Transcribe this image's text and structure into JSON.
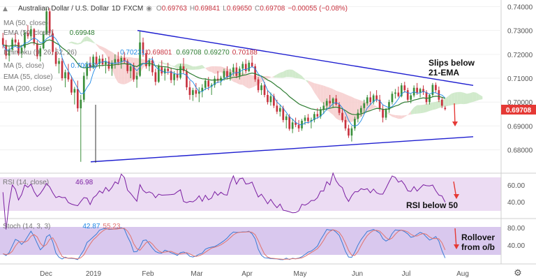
{
  "header": {
    "symbol": "Australian Dollar / U.S. Dollar",
    "interval": "1D",
    "source": "FXCM",
    "o_label": "O",
    "o": "0.69763",
    "h_label": "H",
    "h": "0.69841",
    "l_label": "L",
    "l": "0.69650",
    "c_label": "C",
    "c": "0.69708",
    "change": "−0.00055 (−0.08%)"
  },
  "indicators": {
    "ma50": {
      "label": "MA (50, close)",
      "value": "0.69948"
    },
    "ema50": {
      "label": "EMA (50, close)",
      "value": ""
    },
    "ichimoku": {
      "label": "Ichimoku (9, 26, 52, 26)",
      "v1": "0.70231",
      "v2": "0.69801",
      "v3": "0.69708",
      "v4": "0.69270",
      "v5": "0.70188"
    },
    "ma5": {
      "label": "MA (5, close)",
      "value": "0.70052"
    },
    "ema55": {
      "label": "EMA (55, close)"
    },
    "ma200": {
      "label": "MA (200, close)"
    }
  },
  "rsi_panel": {
    "label": "RSI (14, close)",
    "value": "46.98",
    "ticks": [
      "60.00",
      "40.00"
    ]
  },
  "stoch_panel": {
    "label": "Stoch (14, 3, 3)",
    "k": "42.87",
    "d": "55.23",
    "ticks": [
      "80.00",
      "40.00"
    ]
  },
  "annotations": {
    "main_1": "Slips below",
    "main_2": "21-EMA",
    "rsi": "RSI below 50",
    "stoch_1": "Rollover",
    "stoch_2": "from o/b"
  },
  "price_badge": "0.69708",
  "x_axis_labels": [
    "Dec",
    "2019",
    "Feb",
    "Mar",
    "Apr",
    "May",
    "Jun",
    "Jul",
    "Aug"
  ],
  "colors": {
    "up": "#3b8f3b",
    "down": "#c8323f",
    "trendline": "#1f1fd0",
    "cloud_bull": "#c9e6c3",
    "cloud_bear": "#f6cccc",
    "rsi_bg": "#ecdcf3",
    "stoch_bg": "#d9c8ee",
    "k_line": "#3a7bd5",
    "d_line": "#e0736e",
    "ema": "#2e7d32",
    "arrow": "#e53935",
    "badge": "#e53935"
  },
  "chart_data": {
    "type": "candlestick",
    "y_ticks": [
      0.74,
      0.73,
      0.72,
      0.71,
      0.7,
      0.69,
      0.68
    ],
    "ylim": [
      0.672,
      0.741
    ],
    "candles": [
      [
        0.7268,
        0.729,
        0.7225,
        0.724
      ],
      [
        0.724,
        0.726,
        0.718,
        0.7195
      ],
      [
        0.7195,
        0.723,
        0.717,
        0.722
      ],
      [
        0.722,
        0.727,
        0.721,
        0.7262
      ],
      [
        0.7262,
        0.729,
        0.7235,
        0.725
      ],
      [
        0.725,
        0.7262,
        0.7195,
        0.7205
      ],
      [
        0.7205,
        0.724,
        0.7185,
        0.7228
      ],
      [
        0.7228,
        0.73,
        0.7222,
        0.729
      ],
      [
        0.729,
        0.7322,
        0.7265,
        0.7276
      ],
      [
        0.7276,
        0.732,
        0.726,
        0.7305
      ],
      [
        0.7305,
        0.731,
        0.7238,
        0.7246
      ],
      [
        0.7246,
        0.7258,
        0.718,
        0.7192
      ],
      [
        0.7192,
        0.7235,
        0.717,
        0.7225
      ],
      [
        0.7225,
        0.7298,
        0.722,
        0.7285
      ],
      [
        0.7285,
        0.7393,
        0.728,
        0.738
      ],
      [
        0.738,
        0.7394,
        0.7275,
        0.7288
      ],
      [
        0.7288,
        0.7305,
        0.7198,
        0.721
      ],
      [
        0.721,
        0.7228,
        0.715,
        0.716
      ],
      [
        0.716,
        0.7185,
        0.712,
        0.7172
      ],
      [
        0.7172,
        0.7186,
        0.709,
        0.71
      ],
      [
        0.71,
        0.7136,
        0.7062,
        0.7125
      ],
      [
        0.7125,
        0.716,
        0.7085,
        0.7095
      ],
      [
        0.7095,
        0.711,
        0.703,
        0.704
      ],
      [
        0.704,
        0.7064,
        0.699,
        0.7055
      ],
      [
        0.7055,
        0.709,
        0.696,
        0.6974
      ],
      [
        0.6974,
        0.703,
        0.675,
        0.701
      ],
      [
        0.701,
        0.7125,
        0.7,
        0.711
      ],
      [
        0.711,
        0.717,
        0.7095,
        0.716
      ],
      [
        0.716,
        0.719,
        0.713,
        0.7145
      ],
      [
        0.7145,
        0.72,
        0.7138,
        0.719
      ],
      [
        0.719,
        0.721,
        0.7145,
        0.716
      ],
      [
        0.716,
        0.7195,
        0.714,
        0.7182
      ],
      [
        0.7182,
        0.72,
        0.715,
        0.7158
      ],
      [
        0.7158,
        0.7185,
        0.712,
        0.717
      ],
      [
        0.717,
        0.719,
        0.713,
        0.714
      ],
      [
        0.714,
        0.7175,
        0.711,
        0.7165
      ],
      [
        0.7165,
        0.72,
        0.714,
        0.718
      ],
      [
        0.718,
        0.721,
        0.7155,
        0.7168
      ],
      [
        0.7168,
        0.7195,
        0.714,
        0.7185
      ],
      [
        0.7185,
        0.721,
        0.716,
        0.7172
      ],
      [
        0.7172,
        0.718,
        0.712,
        0.713
      ],
      [
        0.713,
        0.716,
        0.71,
        0.715
      ],
      [
        0.715,
        0.7165,
        0.7085,
        0.7095
      ],
      [
        0.7095,
        0.7125,
        0.706,
        0.711
      ],
      [
        0.711,
        0.7296,
        0.7105,
        0.725
      ],
      [
        0.725,
        0.727,
        0.719,
        0.7205
      ],
      [
        0.7205,
        0.722,
        0.714,
        0.715
      ],
      [
        0.715,
        0.7185,
        0.713,
        0.7175
      ],
      [
        0.7175,
        0.719,
        0.711,
        0.7125
      ],
      [
        0.7125,
        0.714,
        0.707,
        0.7085
      ],
      [
        0.7085,
        0.716,
        0.708,
        0.715
      ],
      [
        0.715,
        0.7175,
        0.711,
        0.712
      ],
      [
        0.712,
        0.715,
        0.709,
        0.714
      ],
      [
        0.714,
        0.7165,
        0.7115,
        0.713
      ],
      [
        0.713,
        0.7145,
        0.708,
        0.7092
      ],
      [
        0.7092,
        0.713,
        0.707,
        0.7118
      ],
      [
        0.7118,
        0.714,
        0.709,
        0.7102
      ],
      [
        0.7102,
        0.716,
        0.7095,
        0.715
      ],
      [
        0.715,
        0.7185,
        0.712,
        0.713
      ],
      [
        0.713,
        0.714,
        0.705,
        0.7062
      ],
      [
        0.7062,
        0.709,
        0.701,
        0.703
      ],
      [
        0.703,
        0.706,
        0.7005,
        0.705
      ],
      [
        0.705,
        0.708,
        0.702,
        0.7035
      ],
      [
        0.7035,
        0.7062,
        0.7,
        0.7045
      ],
      [
        0.7045,
        0.7075,
        0.702,
        0.706
      ],
      [
        0.706,
        0.71,
        0.705,
        0.709
      ],
      [
        0.709,
        0.7105,
        0.705,
        0.7065
      ],
      [
        0.7065,
        0.708,
        0.703,
        0.7072
      ],
      [
        0.7072,
        0.711,
        0.706,
        0.7098
      ],
      [
        0.7098,
        0.713,
        0.708,
        0.709
      ],
      [
        0.709,
        0.711,
        0.707,
        0.7102
      ],
      [
        0.7102,
        0.714,
        0.709,
        0.713
      ],
      [
        0.713,
        0.715,
        0.7095,
        0.7105
      ],
      [
        0.7105,
        0.714,
        0.709,
        0.7125
      ],
      [
        0.7125,
        0.716,
        0.711,
        0.7145
      ],
      [
        0.7145,
        0.7165,
        0.71,
        0.711
      ],
      [
        0.711,
        0.715,
        0.7095,
        0.714
      ],
      [
        0.714,
        0.717,
        0.711,
        0.716
      ],
      [
        0.716,
        0.718,
        0.712,
        0.713
      ],
      [
        0.713,
        0.7175,
        0.7125,
        0.7165
      ],
      [
        0.7165,
        0.7195,
        0.7145,
        0.715
      ],
      [
        0.715,
        0.716,
        0.7085,
        0.7095
      ],
      [
        0.7095,
        0.7105,
        0.704,
        0.705
      ],
      [
        0.705,
        0.708,
        0.703,
        0.707
      ],
      [
        0.707,
        0.7085,
        0.702,
        0.703
      ],
      [
        0.703,
        0.705,
        0.699,
        0.7
      ],
      [
        0.7,
        0.704,
        0.6985,
        0.7025
      ],
      [
        0.7025,
        0.7035,
        0.6975,
        0.6985
      ],
      [
        0.6985,
        0.701,
        0.695,
        0.696
      ],
      [
        0.696,
        0.699,
        0.694,
        0.6975
      ],
      [
        0.6975,
        0.6985,
        0.6915,
        0.6925
      ],
      [
        0.6925,
        0.695,
        0.689,
        0.694
      ],
      [
        0.694,
        0.695,
        0.688,
        0.6888
      ],
      [
        0.6888,
        0.693,
        0.687,
        0.6915
      ],
      [
        0.6915,
        0.6935,
        0.6895,
        0.6905
      ],
      [
        0.6905,
        0.6925,
        0.6875,
        0.689
      ],
      [
        0.689,
        0.693,
        0.688,
        0.6922
      ],
      [
        0.6922,
        0.6945,
        0.6905,
        0.6935
      ],
      [
        0.6935,
        0.695,
        0.691,
        0.692
      ],
      [
        0.692,
        0.6935,
        0.689,
        0.6925
      ],
      [
        0.6925,
        0.696,
        0.6915,
        0.695
      ],
      [
        0.695,
        0.6975,
        0.693,
        0.694
      ],
      [
        0.694,
        0.698,
        0.693,
        0.697
      ],
      [
        0.697,
        0.7,
        0.695,
        0.6985
      ],
      [
        0.6985,
        0.7015,
        0.6965,
        0.7005
      ],
      [
        0.7005,
        0.703,
        0.698,
        0.6995
      ],
      [
        0.6995,
        0.702,
        0.6975,
        0.7015
      ],
      [
        0.7015,
        0.703,
        0.6985,
        0.699
      ],
      [
        0.699,
        0.7,
        0.6945,
        0.6955
      ],
      [
        0.6955,
        0.697,
        0.6915,
        0.6925
      ],
      [
        0.6925,
        0.694,
        0.688,
        0.689
      ],
      [
        0.689,
        0.6905,
        0.685,
        0.686
      ],
      [
        0.686,
        0.69,
        0.6835,
        0.689
      ],
      [
        0.689,
        0.694,
        0.688,
        0.693
      ],
      [
        0.693,
        0.697,
        0.6915,
        0.6955
      ],
      [
        0.6955,
        0.6985,
        0.694,
        0.6975
      ],
      [
        0.6975,
        0.701,
        0.6955,
        0.6995
      ],
      [
        0.6995,
        0.703,
        0.6985,
        0.702
      ],
      [
        0.702,
        0.7045,
        0.699,
        0.7
      ],
      [
        0.7,
        0.7035,
        0.699,
        0.7028
      ],
      [
        0.7028,
        0.705,
        0.7,
        0.701
      ],
      [
        0.701,
        0.703,
        0.696,
        0.697
      ],
      [
        0.697,
        0.699,
        0.6915,
        0.6935
      ],
      [
        0.6935,
        0.6975,
        0.6925,
        0.6968
      ],
      [
        0.6968,
        0.701,
        0.6955,
        0.7
      ],
      [
        0.7,
        0.7045,
        0.699,
        0.7035
      ],
      [
        0.7035,
        0.7055,
        0.7015,
        0.704
      ],
      [
        0.704,
        0.7065,
        0.702,
        0.7025
      ],
      [
        0.7025,
        0.708,
        0.702,
        0.707
      ],
      [
        0.707,
        0.7085,
        0.704,
        0.705
      ],
      [
        0.705,
        0.706,
        0.7,
        0.701
      ],
      [
        0.701,
        0.7035,
        0.6995,
        0.7028
      ],
      [
        0.7028,
        0.707,
        0.702,
        0.706
      ],
      [
        0.706,
        0.708,
        0.703,
        0.704
      ],
      [
        0.704,
        0.706,
        0.702,
        0.7055
      ],
      [
        0.7055,
        0.707,
        0.703,
        0.7042
      ],
      [
        0.7042,
        0.705,
        0.699,
        0.7
      ],
      [
        0.7,
        0.7035,
        0.699,
        0.703
      ],
      [
        0.703,
        0.708,
        0.702,
        0.7072
      ],
      [
        0.7072,
        0.7082,
        0.704,
        0.705
      ],
      [
        0.705,
        0.7065,
        0.7,
        0.701
      ],
      [
        0.701,
        0.702,
        0.6975,
        0.6985
      ],
      [
        0.69763,
        0.69841,
        0.6965,
        0.69708
      ]
    ],
    "trendline_upper": [
      [
        0.73
      ],
      [
        0.707
      ]
    ],
    "trendline_lower": [
      [
        0.675
      ],
      [
        0.6855
      ]
    ]
  }
}
